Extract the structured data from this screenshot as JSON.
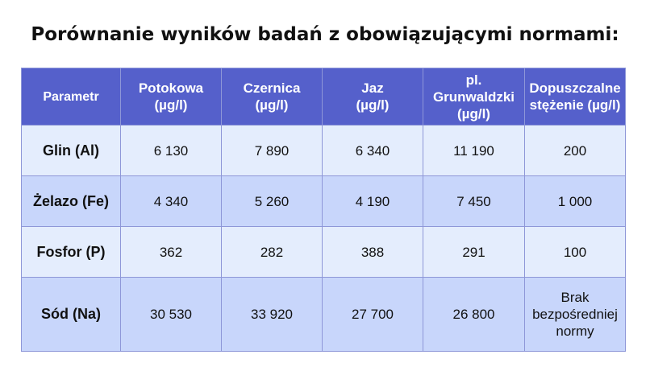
{
  "title": "Porównanie wyników badań z obowiązującymi normami:",
  "table": {
    "headers": [
      "Parametr",
      "Potokowa\n(µg/l)",
      "Czernica\n(µg/l)",
      "Jaz\n(µg/l)",
      "pl. Grunwaldzki\n(µg/l)",
      "Dopuszczalne\nstężenie (µg/l)"
    ],
    "rows": [
      [
        "Glin (Al)",
        "6 130",
        "7 890",
        "6 340",
        "11 190",
        "200"
      ],
      [
        "Żelazo (Fe)",
        "4 340",
        "5 260",
        "4 190",
        "7 450",
        "1 000"
      ],
      [
        "Fosfor (P)",
        "362",
        "282",
        "388",
        "291",
        "100"
      ],
      [
        "Sód (Na)",
        "30 530",
        "33 920",
        "27 700",
        "26 800",
        "Brak\nbezpośredniej\nnormy"
      ]
    ]
  },
  "colors": {
    "header_bg": "#5560cb",
    "row_light": "#e4edfd",
    "row_dark": "#c8d6fb",
    "border": "#8e97d8"
  }
}
